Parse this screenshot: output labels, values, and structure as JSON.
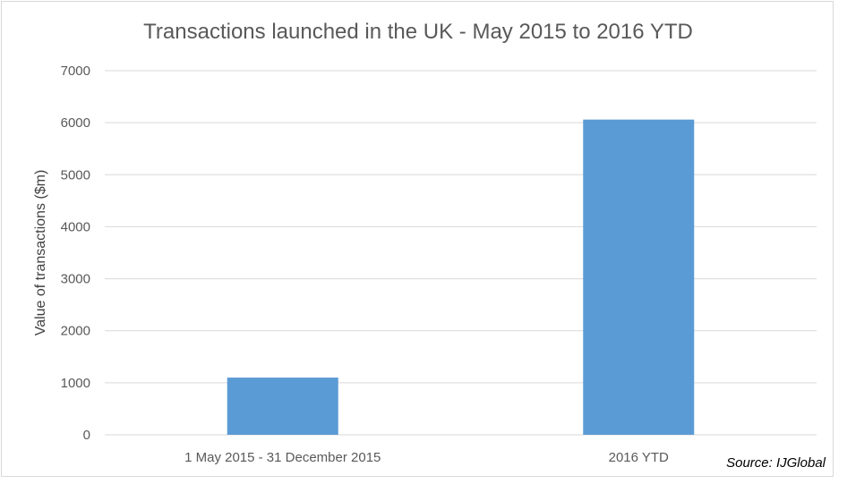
{
  "chart_data": {
    "type": "bar",
    "title": "Transactions launched in the UK - May 2015 to 2016 YTD",
    "ylabel": "Value of transactions ($m)",
    "xlabel": "",
    "categories": [
      "1 May 2015 - 31 December 2015",
      "2016 YTD"
    ],
    "values": [
      1100,
      6060
    ],
    "ylim": [
      0,
      7000
    ],
    "yticks": [
      0,
      1000,
      2000,
      3000,
      4000,
      5000,
      6000,
      7000
    ],
    "grid": true,
    "legend": "none",
    "bar_color": "#5b9bd5",
    "source": "Source: IJGlobal"
  }
}
